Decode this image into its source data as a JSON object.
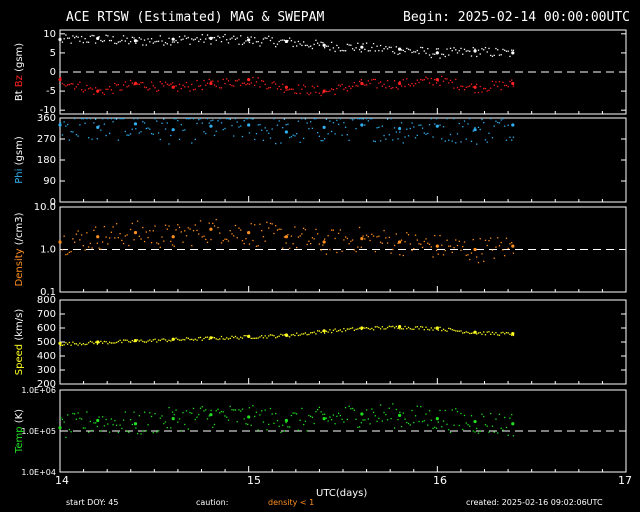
{
  "header": {
    "title": "ACE RTSW (Estimated) MAG & SWEPAM",
    "begin": "Begin: 2025-02-14 00:00:00UTC"
  },
  "footer": {
    "start_doy": "start DOY:  45",
    "caution": "caution:",
    "density_note": "density < 1",
    "created": "created: 2025-02-16 09:02:06UTC"
  },
  "colors": {
    "bt": "#ffffff",
    "bz": "#ff2020",
    "phi": "#30b0f0",
    "density": "#ff9020",
    "speed": "#ffff20",
    "temp": "#20e020",
    "axis": "#ffffff",
    "dash": "#ffffff"
  },
  "chart_data": {
    "type": "scatter",
    "xlabel": "UTC(days)",
    "x_ticks": [
      "14",
      "15",
      "16",
      "17"
    ],
    "xlim": [
      14,
      17
    ],
    "data_end_x": 16.4,
    "panels": [
      {
        "id": "bt_bz",
        "ylabel_parts": [
          {
            "text": "Bt",
            "color": "#ffffff"
          },
          {
            "text": "Bz",
            "color": "#ff2020"
          },
          {
            "text": "(gsm)",
            "color": "#ffffff"
          }
        ],
        "yscale": "linear",
        "ylim": [
          -11,
          11
        ],
        "y_ticks": [
          -10,
          -5,
          0,
          5,
          10
        ],
        "y_tick_labels": [
          "-10",
          "-5",
          "0",
          "5",
          "10"
        ],
        "ref_line": 0,
        "series": [
          {
            "name": "Bt",
            "color": "#ffffff",
            "x": [
              14.0,
              14.2,
              14.4,
              14.6,
              14.8,
              15.0,
              15.2,
              15.4,
              15.6,
              15.8,
              16.0,
              16.2,
              16.4
            ],
            "y": [
              8.5,
              8.8,
              8.2,
              8.6,
              8.8,
              8.4,
              8.0,
              7.0,
              6.5,
              6.0,
              5.0,
              5.5,
              5.0
            ]
          },
          {
            "name": "Bz",
            "color": "#ff2020",
            "x": [
              14.0,
              14.2,
              14.4,
              14.6,
              14.8,
              15.0,
              15.2,
              15.4,
              15.6,
              15.8,
              16.0,
              16.2,
              16.4
            ],
            "y": [
              -2,
              -5,
              -3,
              -4,
              -3,
              -2,
              -4,
              -5,
              -3,
              -3,
              -2,
              -4,
              -3
            ]
          }
        ]
      },
      {
        "id": "phi",
        "ylabel_parts": [
          {
            "text": "Phi",
            "color": "#30b0f0"
          },
          {
            "text": "(gsm)",
            "color": "#ffffff"
          }
        ],
        "yscale": "linear",
        "ylim": [
          0,
          360
        ],
        "y_ticks": [
          0,
          90,
          180,
          270,
          360
        ],
        "y_tick_labels": [
          "0",
          "90",
          "180",
          "270",
          "360"
        ],
        "series": [
          {
            "name": "Phi",
            "color": "#30b0f0",
            "x": [
              14.0,
              14.2,
              14.4,
              14.6,
              14.8,
              15.0,
              15.2,
              15.4,
              15.6,
              15.8,
              16.0,
              16.2,
              16.4
            ],
            "y": [
              330,
              320,
              335,
              310,
              325,
              330,
              300,
              320,
              330,
              315,
              325,
              310,
              330
            ]
          }
        ]
      },
      {
        "id": "density",
        "ylabel_parts": [
          {
            "text": "Density",
            "color": "#ff9020"
          },
          {
            "text": "(/cm3)",
            "color": "#ffffff"
          }
        ],
        "yscale": "log",
        "ylim": [
          0.1,
          10
        ],
        "y_ticks": [
          0.1,
          1,
          10
        ],
        "y_tick_labels": [
          "0.1",
          "1.0",
          "10.0"
        ],
        "ref_line": 1,
        "series": [
          {
            "name": "Density",
            "color": "#ff9020",
            "x": [
              14.0,
              14.2,
              14.4,
              14.6,
              14.8,
              15.0,
              15.2,
              15.4,
              15.6,
              15.8,
              16.0,
              16.2,
              16.4
            ],
            "y": [
              1.5,
              2.0,
              2.5,
              2.0,
              3.0,
              2.5,
              2.0,
              1.5,
              1.8,
              1.5,
              1.2,
              1.0,
              1.2
            ]
          }
        ]
      },
      {
        "id": "speed",
        "ylabel_parts": [
          {
            "text": "Speed",
            "color": "#ffff20"
          },
          {
            "text": "(km/s)",
            "color": "#ffffff"
          }
        ],
        "yscale": "linear",
        "ylim": [
          200,
          800
        ],
        "y_ticks": [
          200,
          300,
          400,
          500,
          600,
          700,
          800
        ],
        "y_tick_labels": [
          "200",
          "300",
          "400",
          "500",
          "600",
          "700",
          "800"
        ],
        "series": [
          {
            "name": "Speed",
            "color": "#ffff20",
            "x": [
              14.0,
              14.2,
              14.4,
              14.6,
              14.8,
              15.0,
              15.2,
              15.4,
              15.6,
              15.8,
              16.0,
              16.2,
              16.4
            ],
            "y": [
              490,
              500,
              510,
              520,
              530,
              540,
              550,
              580,
              600,
              610,
              600,
              570,
              560
            ]
          }
        ]
      },
      {
        "id": "temp",
        "ylabel_parts": [
          {
            "text": "Temp",
            "color": "#20e020"
          },
          {
            "text": "(K)",
            "color": "#ffffff"
          }
        ],
        "yscale": "log",
        "ylim": [
          10000,
          1000000
        ],
        "y_ticks": [
          10000,
          100000,
          1000000
        ],
        "y_tick_labels": [
          "1.0E+04",
          "1.0E+05",
          "1.0E+06"
        ],
        "ref_line": 100000,
        "series": [
          {
            "name": "Temp",
            "color": "#20e020",
            "x": [
              14.0,
              14.2,
              14.4,
              14.6,
              14.8,
              15.0,
              15.2,
              15.4,
              15.6,
              15.8,
              16.0,
              16.2,
              16.4
            ],
            "y": [
              120000,
              180000,
              150000,
              200000,
              250000,
              220000,
              180000,
              200000,
              260000,
              240000,
              200000,
              170000,
              150000
            ]
          }
        ]
      }
    ]
  }
}
